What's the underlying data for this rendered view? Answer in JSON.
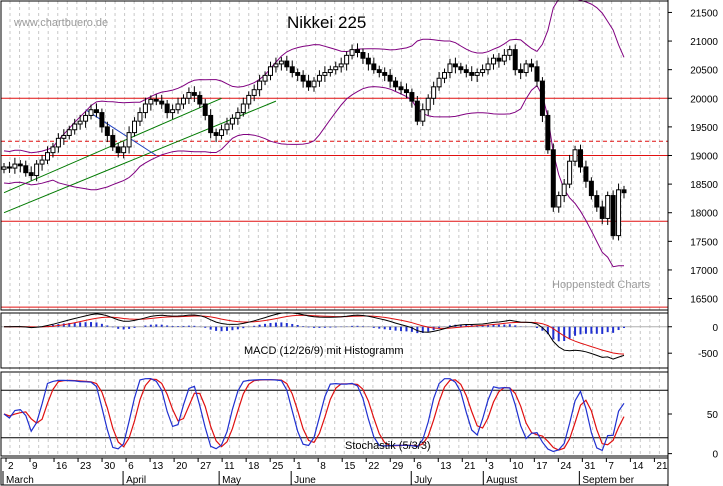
{
  "chart_data": [
    {
      "type": "candlestick",
      "title": "Nikkei 225",
      "watermark": "www.chartbuero.de",
      "credit": "Hoppenstedt Charts",
      "y_ticks": [
        16500,
        17000,
        17500,
        18000,
        18500,
        19000,
        19500,
        20000,
        20500,
        21000,
        21500
      ],
      "ylim": [
        16300,
        21700
      ],
      "horizontal_lines": [
        {
          "value": 20000,
          "style": "solid",
          "color": "#e01010"
        },
        {
          "value": 19250,
          "style": "dashed",
          "color": "#e01010"
        },
        {
          "value": 19000,
          "style": "solid",
          "color": "#e01010"
        },
        {
          "value": 17850,
          "style": "solid",
          "color": "#e01010"
        },
        {
          "value": 16350,
          "style": "solid",
          "color": "#e01010"
        }
      ],
      "closes": [
        18800,
        18780,
        18850,
        18820,
        18700,
        18650,
        18850,
        18920,
        19050,
        19150,
        19300,
        19350,
        19450,
        19550,
        19600,
        19700,
        19800,
        19750,
        19500,
        19350,
        19150,
        19050,
        19150,
        19400,
        19600,
        19750,
        19900,
        19980,
        19950,
        19900,
        19750,
        19800,
        19900,
        20000,
        20100,
        20050,
        19900,
        19700,
        19400,
        19350,
        19450,
        19550,
        19650,
        19750,
        19900,
        20050,
        20150,
        20300,
        20400,
        20550,
        20600,
        20650,
        20550,
        20450,
        20400,
        20300,
        20200,
        20300,
        20400,
        20450,
        20500,
        20550,
        20600,
        20750,
        20850,
        20800,
        20700,
        20600,
        20500,
        20450,
        20400,
        20300,
        20200,
        20150,
        20100,
        19950,
        19600,
        19800,
        20000,
        20200,
        20350,
        20450,
        20600,
        20550,
        20500,
        20450,
        20400,
        20450,
        20500,
        20600,
        20700,
        20650,
        20750,
        20850,
        20500,
        20450,
        20600,
        20550,
        20300,
        19700,
        19100,
        18100,
        18300,
        18500,
        18900,
        19100,
        18800,
        18550,
        18300,
        18100,
        17900,
        18300,
        17600,
        18400,
        18350
      ],
      "trendlines": [
        {
          "from": [
            0,
            18000
          ],
          "to": [
            50,
            19950
          ],
          "color": "#007a00"
        },
        {
          "from": [
            0,
            18350
          ],
          "to": [
            40,
            20000
          ],
          "color": "#007a00"
        },
        {
          "from": [
            15,
            19800
          ],
          "to": [
            28,
            19000
          ],
          "color": "#2040c0"
        }
      ],
      "bollinger_color": "#800080"
    },
    {
      "type": "macd",
      "label": "MACD (12/26/9) mit Histogramm",
      "y_ticks": [
        0,
        -500
      ],
      "ylim": [
        -780,
        260
      ],
      "line_colors": {
        "macd": "#000000",
        "signal": "#e01010",
        "histogram": "#2030d0"
      }
    },
    {
      "type": "stochastic",
      "label": "Stochastik (5/3/3)",
      "y_ticks": [
        50,
        0
      ],
      "ylim": [
        -3,
        103
      ],
      "levels": [
        80,
        20
      ],
      "line_colors": {
        "k": "#2030d0",
        "d": "#e01010"
      }
    }
  ],
  "x_axis": {
    "day_labels": [
      "2",
      "9",
      "16",
      "23",
      "30",
      "6",
      "13",
      "20",
      "27",
      "11",
      "18",
      "25",
      "1",
      "8",
      "15",
      "22",
      "29",
      "6",
      "13",
      "21",
      "3",
      "10",
      "17",
      "24",
      "31",
      "7",
      "14",
      "21"
    ],
    "months": [
      "March",
      "April",
      "May",
      "June",
      "July",
      "August",
      "Septem ber"
    ]
  }
}
